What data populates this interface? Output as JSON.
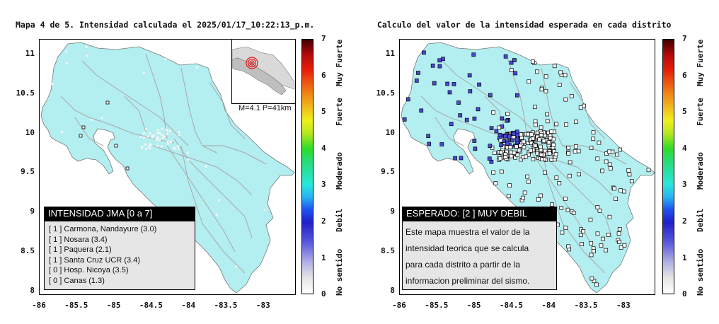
{
  "left_panel": {
    "title": "Mapa 4 de 5. Intensidad calculada el 2025/01/17_10:22:13_p.m.",
    "legend_title": "INTENSIDAD JMA [0 a 7]",
    "legend_items": [
      "[ 1 ]  Carmona, Nandayure (3.0)",
      "[ 1 ]  Nosara (3.4)",
      "[ 1 ]  Paquera (2.1)",
      "[ 1 ]  Santa Cruz UCR (3.4)",
      "[ 0 ]  Hosp. Nicoya (3.5)",
      "[ 0 ]  Canas (1.3)"
    ],
    "inset_label": "M=4.1  P=41km"
  },
  "right_panel": {
    "title": "Calculo del valor de la intensidad esperada en cada distrito",
    "legend_title": "ESPERADO: [2 ] MUY DEBIL",
    "info_lines": [
      "Este mapa muestra el valor de la",
      "intensidad teorica que se calcula",
      "para cada distrito a partir de la",
      "informacion preliminar del sismo."
    ]
  },
  "axes": {
    "y_ticks": [
      "11",
      "10.5",
      "10",
      "9.5",
      "9",
      "8.5",
      "8"
    ],
    "x_ticks": [
      "-86",
      "-85.5",
      "-85",
      "-84.5",
      "-84",
      "-83.5",
      "-83"
    ]
  },
  "colorbar": {
    "numbers": [
      "7",
      "6",
      "5",
      "4",
      "3",
      "2",
      "1",
      "0"
    ],
    "labels": [
      "Muy Fuerte",
      "Fuerte",
      "Moderado",
      "Debil",
      "No sentido"
    ]
  },
  "colors": {
    "land": "#b3eef0",
    "district_low": "#ffffff",
    "district_weak": "#4a4ad8",
    "epicenter": "#e01818"
  }
}
